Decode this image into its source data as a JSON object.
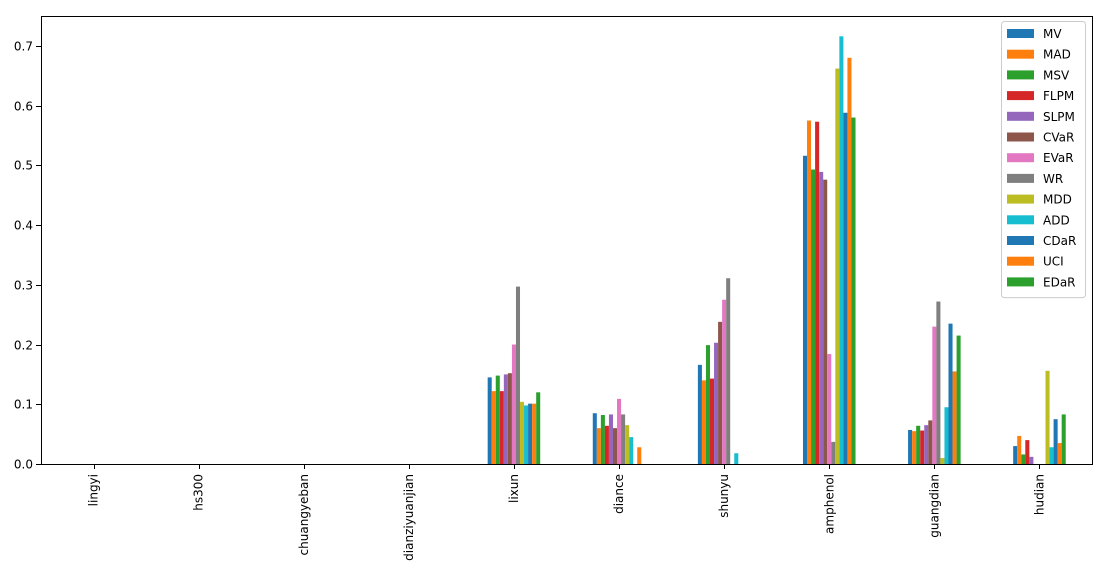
{
  "chart_data": {
    "type": "bar",
    "title": "",
    "xlabel": "",
    "ylabel": "",
    "ylim": [
      0,
      0.75
    ],
    "yticks": [
      0.0,
      0.1,
      0.2,
      0.3,
      0.4,
      0.5,
      0.6,
      0.7
    ],
    "ytick_labels": [
      "0.0",
      "0.1",
      "0.2",
      "0.3",
      "0.4",
      "0.5",
      "0.6",
      "0.7"
    ],
    "grid": false,
    "legend_position": "top-right",
    "categories": [
      "lingyi",
      "hs300",
      "chuangyeban",
      "dianziyuanjian",
      "lixun",
      "diance",
      "shunyu",
      "amphenol",
      "guangdian",
      "hudian"
    ],
    "series": [
      {
        "name": "MV",
        "color": "#1f77b4",
        "values": [
          0,
          0,
          0,
          0,
          0.145,
          0.085,
          0.166,
          0.516,
          0.057,
          0.03
        ]
      },
      {
        "name": "MAD",
        "color": "#ff7f0e",
        "values": [
          0,
          0,
          0,
          0,
          0.122,
          0.06,
          0.14,
          0.575,
          0.055,
          0.047
        ]
      },
      {
        "name": "MSV",
        "color": "#2ca02c",
        "values": [
          0,
          0,
          0,
          0,
          0.148,
          0.082,
          0.199,
          0.493,
          0.064,
          0.016
        ]
      },
      {
        "name": "FLPM",
        "color": "#d62728",
        "values": [
          0,
          0,
          0,
          0,
          0.122,
          0.064,
          0.143,
          0.573,
          0.056,
          0.04
        ]
      },
      {
        "name": "SLPM",
        "color": "#9467bd",
        "values": [
          0,
          0,
          0,
          0,
          0.15,
          0.083,
          0.203,
          0.489,
          0.065,
          0.012
        ]
      },
      {
        "name": "CVaR",
        "color": "#8c564b",
        "values": [
          0,
          0,
          0,
          0,
          0.152,
          0.06,
          0.238,
          0.476,
          0.073,
          0.0
        ]
      },
      {
        "name": "EVaR",
        "color": "#e377c2",
        "values": [
          0,
          0,
          0,
          0,
          0.2,
          0.109,
          0.275,
          0.184,
          0.23,
          0.0
        ]
      },
      {
        "name": "WR",
        "color": "#7f7f7f",
        "values": [
          0,
          0,
          0,
          0,
          0.297,
          0.083,
          0.311,
          0.037,
          0.272,
          0.0
        ]
      },
      {
        "name": "MDD",
        "color": "#bcbd22",
        "values": [
          0,
          0,
          0,
          0,
          0.104,
          0.065,
          0.0,
          0.662,
          0.01,
          0.156
        ]
      },
      {
        "name": "ADD",
        "color": "#17becf",
        "values": [
          0,
          0,
          0,
          0,
          0.098,
          0.045,
          0.018,
          0.716,
          0.095,
          0.028
        ]
      },
      {
        "name": "CDaR",
        "color": "#1f77b4",
        "values": [
          0,
          0,
          0,
          0,
          0.101,
          0.0,
          0.0,
          0.588,
          0.235,
          0.075
        ]
      },
      {
        "name": "UCI",
        "color": "#ff7f0e",
        "values": [
          0,
          0,
          0,
          0,
          0.101,
          0.028,
          0.0,
          0.68,
          0.155,
          0.035
        ]
      },
      {
        "name": "EDaR",
        "color": "#2ca02c",
        "values": [
          0,
          0,
          0,
          0,
          0.12,
          0.0,
          0.0,
          0.58,
          0.215,
          0.083
        ]
      }
    ]
  }
}
